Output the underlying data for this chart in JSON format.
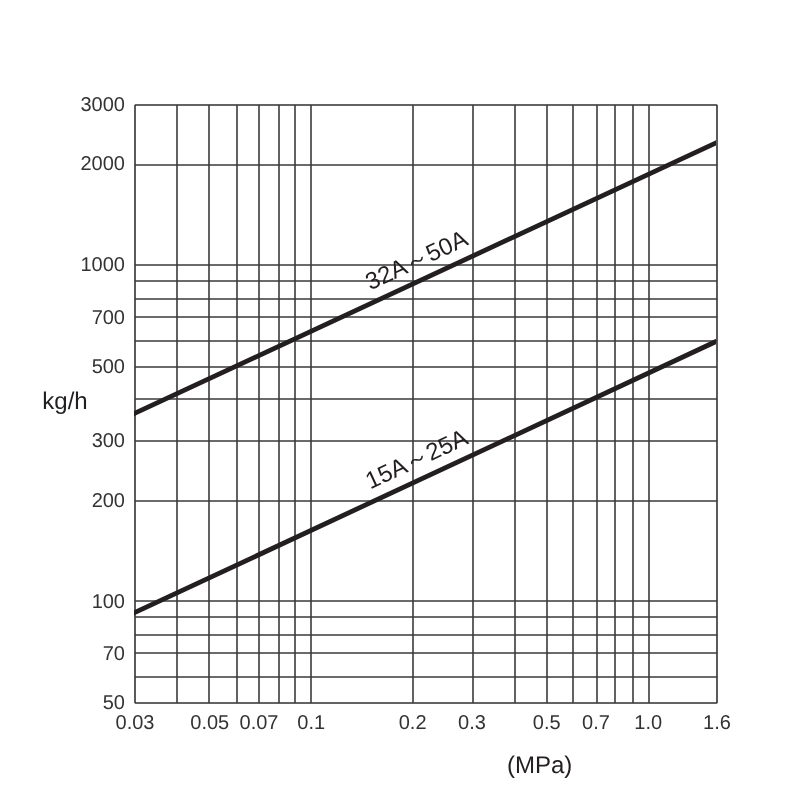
{
  "chart_data": {
    "type": "line",
    "xlabel": "(MPa)",
    "ylabel": "kg/h",
    "x": [
      0.03,
      1.6
    ],
    "series": [
      {
        "name": "32A～50A",
        "color": "#231f20",
        "values": [
          360,
          2300
        ]
      },
      {
        "name": "15A～25A",
        "color": "#231f20",
        "values": [
          92,
          590
        ]
      }
    ],
    "xlim": [
      0.03,
      1.6
    ],
    "ylim": [
      50,
      3000
    ],
    "xticks": [
      0.03,
      {
        "value": 0.04,
        "label": null
      },
      0.05,
      {
        "value": 0.06,
        "label": null
      },
      0.07,
      {
        "value": 0.08,
        "label": null
      },
      {
        "value": 0.09,
        "label": null
      },
      0.1,
      0.2,
      0.3,
      {
        "value": 0.4,
        "label": null
      },
      0.5,
      {
        "value": 0.6,
        "label": null
      },
      0.7,
      {
        "value": 0.8,
        "label": null
      },
      {
        "value": 0.9,
        "label": null
      },
      {
        "value": 1,
        "label": "1.0"
      },
      1.6
    ],
    "yticks": [
      50,
      {
        "value": 60,
        "label": null
      },
      70,
      {
        "value": 80,
        "label": null
      },
      {
        "value": 90,
        "label": null
      },
      100,
      200,
      300,
      {
        "value": 400,
        "label": null
      },
      500,
      {
        "value": 600,
        "label": null
      },
      700,
      {
        "value": 800,
        "label": null
      },
      {
        "value": 900,
        "label": null
      },
      1000,
      2000,
      3000
    ],
    "log": "xy",
    "grid": true
  }
}
